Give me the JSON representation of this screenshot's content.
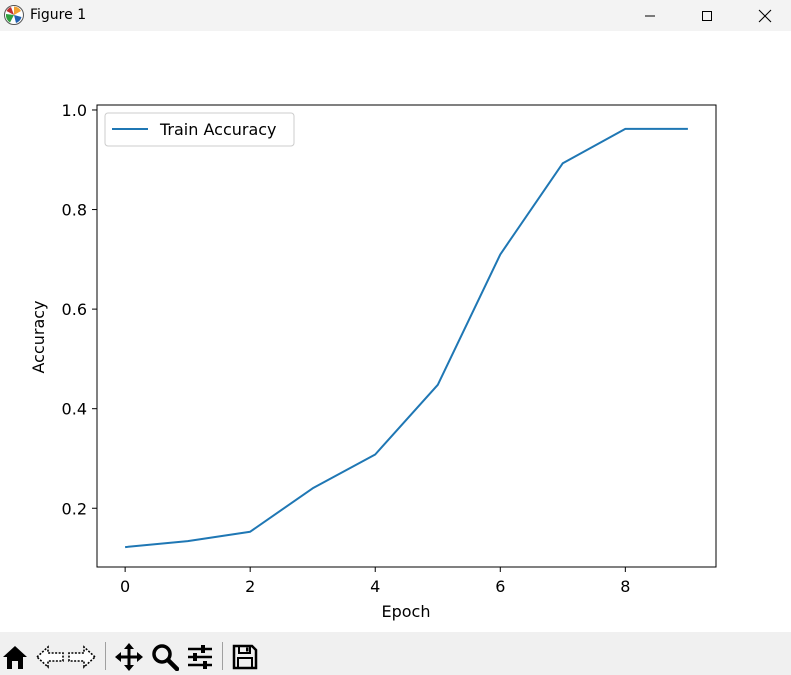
{
  "window": {
    "title": "Figure 1",
    "icons": [
      "matplotlib-logo-icon",
      "minimize-icon",
      "maximize-icon",
      "close-icon"
    ]
  },
  "toolbar": {
    "icons": [
      "home-icon",
      "back-icon",
      "forward-icon",
      "pan-icon",
      "zoom-icon",
      "configure-subplots-icon",
      "save-icon"
    ]
  },
  "chart_data": {
    "type": "line",
    "title": "",
    "xlabel": "Epoch",
    "ylabel": "Accuracy",
    "xlim": [
      -0.45,
      9.45
    ],
    "ylim": [
      0.082,
      1.01
    ],
    "xticks": [
      0,
      2,
      4,
      6,
      8
    ],
    "xtick_labels": [
      "0",
      "2",
      "4",
      "6",
      "8"
    ],
    "yticks": [
      0.2,
      0.4,
      0.6,
      0.8,
      1.0
    ],
    "ytick_labels": [
      "0.2",
      "0.4",
      "0.6",
      "0.8",
      "1.0"
    ],
    "grid": false,
    "legend_position": "top-left",
    "series": [
      {
        "name": "Train Accuracy",
        "color": "#1f77b4",
        "x": [
          0,
          1,
          2,
          3,
          4,
          5,
          6,
          7,
          8,
          9
        ],
        "y": [
          0.122,
          0.134,
          0.153,
          0.24,
          0.308,
          0.448,
          0.71,
          0.893,
          0.962,
          0.962
        ]
      }
    ]
  }
}
